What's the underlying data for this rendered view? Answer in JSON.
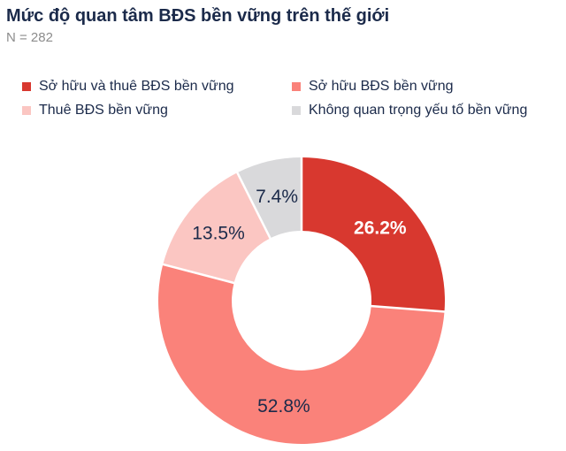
{
  "header": {
    "title": "Mức độ quan tâm BĐS bền vững trên thế giới",
    "sample_size": "N = 282"
  },
  "colors": {
    "title_text": "#1b2a4a",
    "subtitle_text": "#8c8c8c",
    "legend_text": "#1b2a4a",
    "background": "#ffffff",
    "slice_divider": "#ffffff"
  },
  "legend": {
    "items": [
      {
        "label": "Sở hữu và thuê BĐS bền vững",
        "color": "#d8382f"
      },
      {
        "label": "Sở hữu BĐS bền vững",
        "color": "#fa827a"
      },
      {
        "label": "Thuê BĐS bền vững",
        "color": "#fbc6c2"
      },
      {
        "label": "Không quan trọng yếu tố bền vững",
        "color": "#d9d9db"
      }
    ]
  },
  "chart_data": {
    "type": "pie",
    "subtype": "donut",
    "title": "Mức độ quan tâm BĐS bền vững trên thế giới",
    "sample_size_note": "N = 282",
    "legend_position": "top",
    "start_angle_deg": 0,
    "clockwise": true,
    "inner_radius_ratio": 0.49,
    "slices": [
      {
        "label": "Sở hữu và thuê BĐS bền vững",
        "value": 26.2,
        "display": "26.2%",
        "color": "#d8382f",
        "label_color": "#ffffff",
        "label_bold": true
      },
      {
        "label": "Sở hữu BĐS bền vững",
        "value": 52.8,
        "display": "52.8%",
        "color": "#fa827a",
        "label_color": "#1b2a4a",
        "label_bold": false
      },
      {
        "label": "Thuê BĐS bền vững",
        "value": 13.5,
        "display": "13.5%",
        "color": "#fbc6c2",
        "label_color": "#1b2a4a",
        "label_bold": false
      },
      {
        "label": "Không quan trọng yếu tố bền vững",
        "value": 7.4,
        "display": "7.4%",
        "color": "#d9d9db",
        "label_color": "#1b2a4a",
        "label_bold": false
      }
    ]
  }
}
